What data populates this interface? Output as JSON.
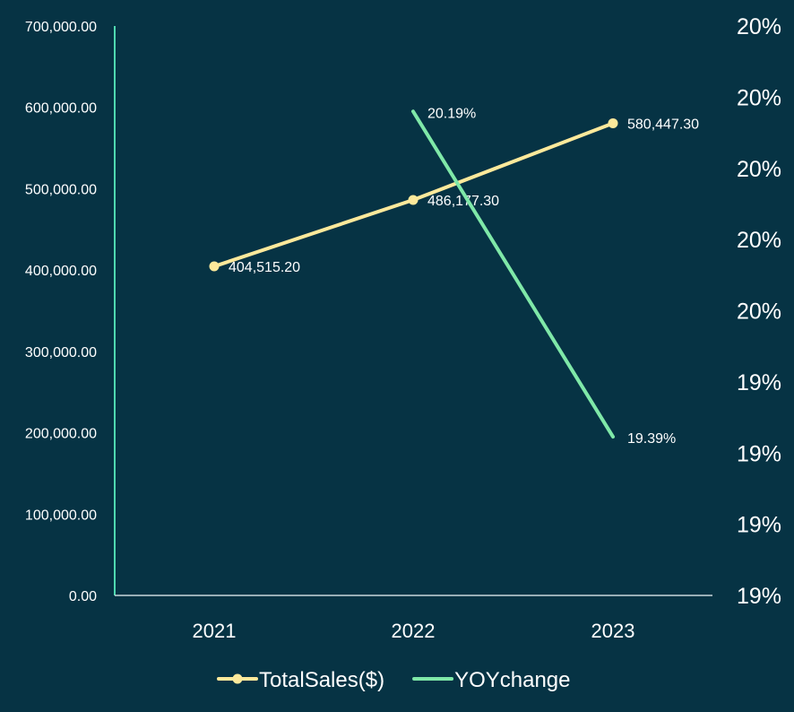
{
  "chart_data": {
    "type": "line",
    "title": "",
    "categories": [
      "2021",
      "2022",
      "2023"
    ],
    "series": [
      {
        "name": "TotalSales($)",
        "axis": "left",
        "values": [
          404515.2,
          486177.3,
          580447.3
        ],
        "labels": [
          "404,515.20",
          "486,177.30",
          "580,447.30"
        ],
        "color": "#fde99b",
        "markers": true
      },
      {
        "name": "YOYchange",
        "axis": "right",
        "values": [
          null,
          20.19,
          19.39
        ],
        "labels": [
          "",
          "20.19%",
          "19.39%"
        ],
        "color": "#7fe8a8",
        "markers": false
      }
    ],
    "y_left": {
      "ylim": [
        0,
        700000
      ],
      "ticks": [
        "0.00",
        "100,000.00",
        "200,000.00",
        "300,000.00",
        "400,000.00",
        "500,000.00",
        "600,000.00",
        "700,000.00"
      ]
    },
    "y_right": {
      "ylim": [
        19.0,
        20.4
      ],
      "ticks": [
        "19%",
        "19%",
        "19%",
        "19%",
        "20%",
        "20%",
        "20%",
        "20%",
        "20%"
      ]
    },
    "legend_position": "bottom",
    "grid": false,
    "colors": {
      "background": "#063344",
      "axis": "#4fd9b0",
      "baseline": "#c8d8dc",
      "text": "#ffffff"
    }
  }
}
